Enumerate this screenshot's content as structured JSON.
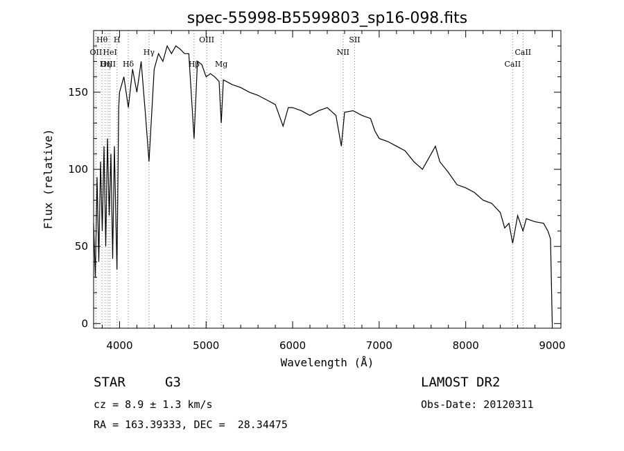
{
  "chart_data": {
    "type": "line",
    "title": "spec-55998-B5599803_sp16-098.fits",
    "xlabel": "Wavelength (Å)",
    "ylabel": "Flux (relative)",
    "xlim": [
      3700,
      9100
    ],
    "ylim": [
      -3,
      190
    ],
    "x_ticks": [
      4000,
      5000,
      6000,
      7000,
      8000,
      9000
    ],
    "y_ticks": [
      0,
      50,
      100,
      150
    ],
    "grid": false,
    "series": [
      {
        "x": [
          3700,
          3720,
          3740,
          3760,
          3780,
          3800,
          3820,
          3840,
          3860,
          3880,
          3900,
          3920,
          3940,
          3960,
          3970,
          3990,
          4000,
          4050,
          4101,
          4150,
          4200,
          4250,
          4300,
          4340,
          4400,
          4450,
          4500,
          4550,
          4600,
          4650,
          4700,
          4750,
          4800,
          4861,
          4900,
          4950,
          5000,
          5050,
          5100,
          5150,
          5175,
          5200,
          5300,
          5400,
          5500,
          5600,
          5700,
          5800,
          5890,
          5950,
          6000,
          6100,
          6200,
          6300,
          6400,
          6500,
          6563,
          6600,
          6700,
          6800,
          6900,
          6950,
          7000,
          7100,
          7200,
          7300,
          7400,
          7500,
          7600,
          7650,
          7700,
          7800,
          7900,
          8000,
          8100,
          8200,
          8300,
          8400,
          8450,
          8500,
          8542,
          8600,
          8662,
          8700,
          8800,
          8900,
          8950,
          8980,
          9000
        ],
        "y": [
          65,
          30,
          95,
          40,
          105,
          60,
          115,
          50,
          120,
          70,
          110,
          42,
          115,
          60,
          35,
          140,
          150,
          160,
          140,
          165,
          150,
          170,
          135,
          105,
          165,
          175,
          170,
          180,
          175,
          180,
          178,
          175,
          175,
          120,
          170,
          168,
          160,
          162,
          160,
          157,
          130,
          158,
          155,
          153,
          150,
          148,
          145,
          142,
          128,
          140,
          140,
          138,
          135,
          138,
          140,
          135,
          115,
          137,
          138,
          135,
          133,
          125,
          120,
          118,
          115,
          112,
          105,
          100,
          110,
          115,
          105,
          98,
          90,
          88,
          85,
          80,
          78,
          72,
          62,
          65,
          52,
          70,
          60,
          68,
          66,
          65,
          60,
          55,
          0
        ]
      }
    ],
    "line_markers": [
      {
        "label": "Hθ",
        "wavelength": 3797,
        "row": 1
      },
      {
        "label": "H",
        "wavelength": 3970,
        "row": 1
      },
      {
        "label": "OII",
        "wavelength": 3727,
        "row": 2
      },
      {
        "label": "HeI",
        "wavelength": 3889,
        "row": 2
      },
      {
        "label": "Hγ",
        "wavelength": 4340,
        "row": 2
      },
      {
        "label": "OIII",
        "wavelength": 3869,
        "row": 3
      },
      {
        "label": "Hη",
        "wavelength": 3835,
        "row": 3
      },
      {
        "label": "Hδ",
        "wavelength": 4101,
        "row": 3
      },
      {
        "label": "OIII",
        "wavelength": 5007,
        "row": 1
      },
      {
        "label": "Hβ",
        "wavelength": 4861,
        "row": 3
      },
      {
        "label": "Mg",
        "wavelength": 5175,
        "row": 3
      },
      {
        "label": "NII",
        "wavelength": 6583,
        "row": 2
      },
      {
        "label": "SII",
        "wavelength": 6716,
        "row": 1
      },
      {
        "label": "CaII",
        "wavelength": 8662,
        "row": 2
      },
      {
        "label": "CaII",
        "wavelength": 8542,
        "row": 3
      }
    ]
  },
  "info": {
    "object_class": "STAR",
    "subclass": "G3",
    "survey": "LAMOST DR2",
    "cz": "cz = 8.9 ± 1.3 km/s",
    "obs_date": "Obs-Date: 20120311",
    "coords": "RA = 163.39333, DEC =  28.34475"
  }
}
